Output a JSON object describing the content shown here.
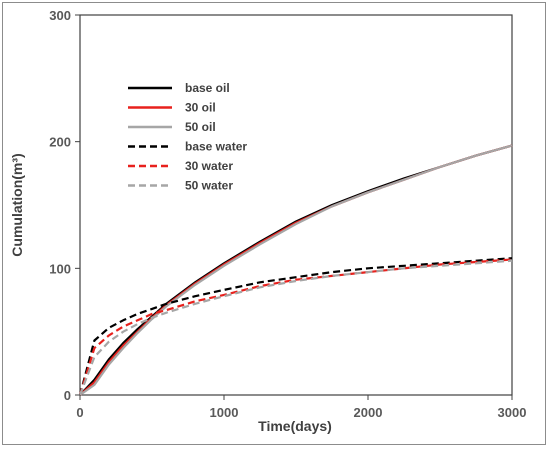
{
  "chart_data": {
    "type": "line",
    "xlabel": "Time(days)",
    "ylabel": "Cumulation(m³)",
    "xlim": [
      0,
      3000
    ],
    "ylim": [
      0,
      300
    ],
    "x_ticks": [
      "0",
      "1000",
      "2000",
      "3000"
    ],
    "y_ticks": [
      "0",
      "100",
      "200",
      "300"
    ],
    "grid": false,
    "legend_position": "top-left",
    "x": [
      0,
      100,
      200,
      300,
      400,
      500,
      600,
      800,
      1000,
      1250,
      1500,
      1750,
      2000,
      2250,
      2500,
      2750,
      3000
    ],
    "series": [
      {
        "name": "base oil",
        "color": "#000000",
        "dash": "solid",
        "values": [
          0,
          12,
          28,
          41,
          52,
          62,
          72,
          89,
          104,
          121,
          137,
          150,
          161,
          171,
          180,
          189,
          197
        ]
      },
      {
        "name": "30 oil",
        "color": "#e8211d",
        "dash": "solid",
        "values": [
          0,
          10,
          26,
          39,
          50,
          61,
          71,
          88,
          103,
          120,
          136,
          149,
          160,
          170,
          180,
          189,
          197
        ]
      },
      {
        "name": "50 oil",
        "color": "#a6a6a6",
        "dash": "solid",
        "values": [
          0,
          8,
          24,
          37,
          49,
          60,
          70,
          87,
          102,
          119,
          135,
          149,
          160,
          170,
          180,
          189,
          197
        ]
      },
      {
        "name": "base water",
        "color": "#000000",
        "dash": "dashed",
        "values": [
          0,
          43,
          53,
          59,
          64,
          68,
          72,
          78,
          83,
          89,
          93,
          97,
          100,
          102,
          104,
          106,
          108
        ]
      },
      {
        "name": "30 water",
        "color": "#e8211d",
        "dash": "dashed",
        "values": [
          0,
          37,
          47,
          54,
          59,
          64,
          67,
          74,
          79,
          86,
          91,
          94,
          97,
          100,
          103,
          105,
          107
        ]
      },
      {
        "name": "50 water",
        "color": "#a6a6a6",
        "dash": "dashed",
        "values": [
          0,
          30,
          42,
          50,
          56,
          61,
          65,
          72,
          78,
          85,
          90,
          94,
          97,
          100,
          102,
          104,
          106
        ]
      }
    ]
  }
}
